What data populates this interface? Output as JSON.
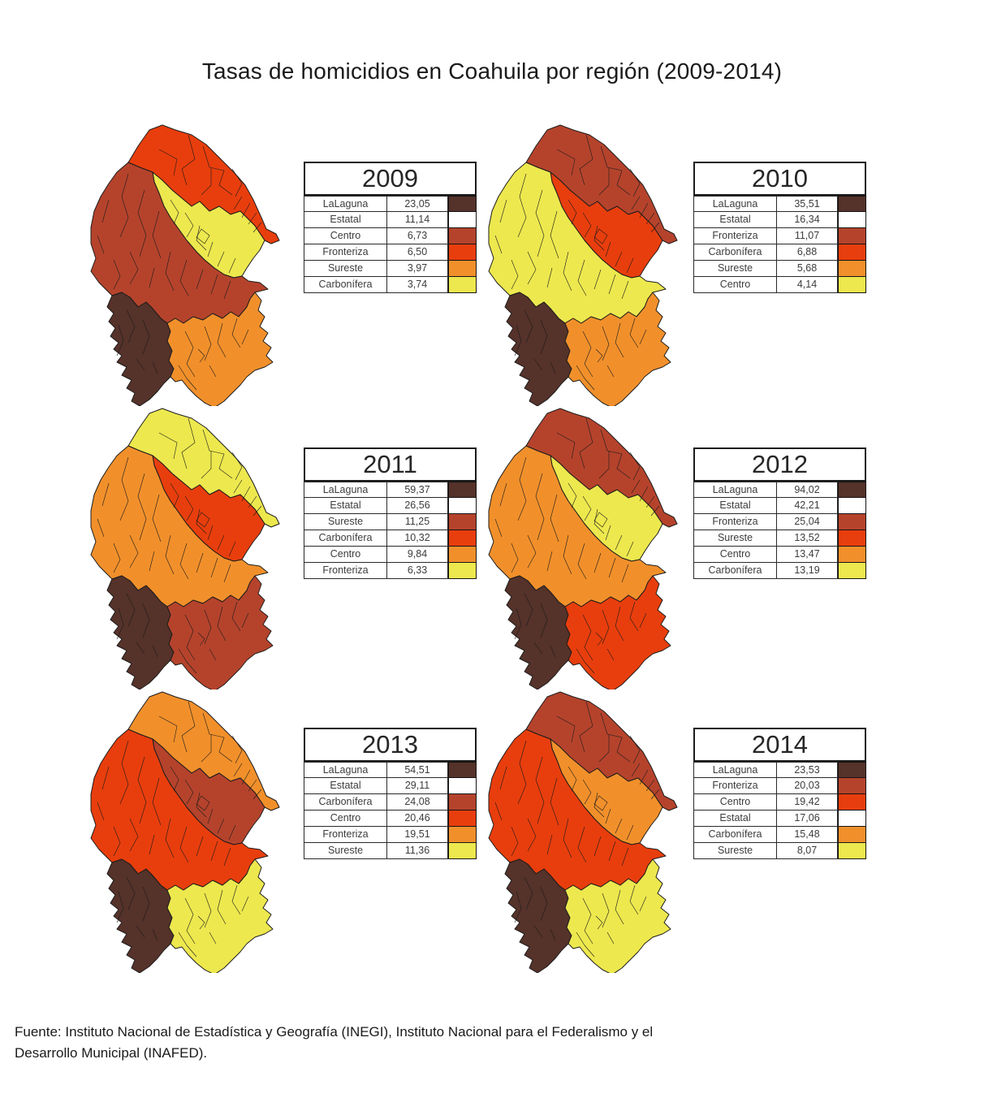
{
  "page": {
    "title": "Tasas de homicidios en Coahuila por región (2009-2014)"
  },
  "source": {
    "line1": "Fuente: Instituto Nacional de Estadística y Geografía (INEGI), Instituto Nacional para el Federalismo y el",
    "line2": "Desarrollo Municipal (INAFED)."
  },
  "palette": {
    "rank_colors": [
      "#55322A",
      "#FFFFFF",
      "#B5432C",
      "#E83E0D",
      "#F1902B",
      "#EDE84E"
    ],
    "border": "#1C1C1C"
  },
  "chart_data": {
    "type": "heatmap",
    "subtype": "choropleth-small-multiples",
    "title": "Tasas de homicidios en Coahuila por región (2009-2014)",
    "x": [
      2009,
      2010,
      2011,
      2012,
      2013,
      2014
    ],
    "series": [
      {
        "name": "LaLaguna",
        "values": [
          23.05,
          35.51,
          59.37,
          94.02,
          54.51,
          23.53
        ]
      },
      {
        "name": "Estatal",
        "values": [
          11.14,
          16.34,
          26.56,
          42.21,
          29.11,
          17.06
        ]
      },
      {
        "name": "Fronteriza",
        "values": [
          6.5,
          11.07,
          6.33,
          25.04,
          19.51,
          20.03
        ]
      },
      {
        "name": "Carbonífera",
        "values": [
          3.74,
          6.88,
          10.32,
          13.19,
          24.08,
          15.48
        ]
      },
      {
        "name": "Centro",
        "values": [
          6.73,
          4.14,
          9.84,
          13.47,
          20.46,
          19.42
        ]
      },
      {
        "name": "Sureste",
        "values": [
          3.97,
          5.68,
          11.25,
          13.52,
          11.36,
          8.07
        ]
      }
    ],
    "years": [
      {
        "label": "2009",
        "rows": [
          {
            "region": "LaLaguna",
            "value": "23,05",
            "color": "#55322A"
          },
          {
            "region": "Estatal",
            "value": "11,14",
            "color": "#FFFFFF"
          },
          {
            "region": "Centro",
            "value": "6,73",
            "color": "#B5432C"
          },
          {
            "region": "Fronteriza",
            "value": "6,50",
            "color": "#E83E0D"
          },
          {
            "region": "Sureste",
            "value": "3,97",
            "color": "#F1902B"
          },
          {
            "region": "Carbonífera",
            "value": "3,74",
            "color": "#EDE84E"
          }
        ],
        "region_colors": {
          "laguna": "#55322A",
          "centro": "#B5432C",
          "fronteriza": "#E83E0D",
          "sureste": "#F1902B",
          "carbonifera": "#EDE84E"
        }
      },
      {
        "label": "2010",
        "rows": [
          {
            "region": "LaLaguna",
            "value": "35,51",
            "color": "#55322A"
          },
          {
            "region": "Estatal",
            "value": "16,34",
            "color": "#FFFFFF"
          },
          {
            "region": "Fronteriza",
            "value": "11,07",
            "color": "#B5432C"
          },
          {
            "region": "Carbonífera",
            "value": "6,88",
            "color": "#E83E0D"
          },
          {
            "region": "Sureste",
            "value": "5,68",
            "color": "#F1902B"
          },
          {
            "region": "Centro",
            "value": "4,14",
            "color": "#EDE84E"
          }
        ],
        "region_colors": {
          "laguna": "#55322A",
          "fronteriza": "#B5432C",
          "carbonifera": "#E83E0D",
          "sureste": "#F1902B",
          "centro": "#EDE84E"
        }
      },
      {
        "label": "2011",
        "rows": [
          {
            "region": "LaLaguna",
            "value": "59,37",
            "color": "#55322A"
          },
          {
            "region": "Estatal",
            "value": "26,56",
            "color": "#FFFFFF"
          },
          {
            "region": "Sureste",
            "value": "11,25",
            "color": "#B5432C"
          },
          {
            "region": "Carbonífera",
            "value": "10,32",
            "color": "#E83E0D"
          },
          {
            "region": "Centro",
            "value": "9,84",
            "color": "#F1902B"
          },
          {
            "region": "Fronteriza",
            "value": "6,33",
            "color": "#EDE84E"
          }
        ],
        "region_colors": {
          "laguna": "#55322A",
          "sureste": "#B5432C",
          "carbonifera": "#E83E0D",
          "centro": "#F1902B",
          "fronteriza": "#EDE84E"
        }
      },
      {
        "label": "2012",
        "rows": [
          {
            "region": "LaLaguna",
            "value": "94,02",
            "color": "#55322A"
          },
          {
            "region": "Estatal",
            "value": "42,21",
            "color": "#FFFFFF"
          },
          {
            "region": "Fronteriza",
            "value": "25,04",
            "color": "#B5432C"
          },
          {
            "region": "Sureste",
            "value": "13,52",
            "color": "#E83E0D"
          },
          {
            "region": "Centro",
            "value": "13,47",
            "color": "#F1902B"
          },
          {
            "region": "Carbonífera",
            "value": "13,19",
            "color": "#EDE84E"
          }
        ],
        "region_colors": {
          "laguna": "#55322A",
          "fronteriza": "#B5432C",
          "sureste": "#E83E0D",
          "centro": "#F1902B",
          "carbonifera": "#EDE84E"
        }
      },
      {
        "label": "2013",
        "rows": [
          {
            "region": "LaLaguna",
            "value": "54,51",
            "color": "#55322A"
          },
          {
            "region": "Estatal",
            "value": "29,11",
            "color": "#FFFFFF"
          },
          {
            "region": "Carbonífera",
            "value": "24,08",
            "color": "#B5432C"
          },
          {
            "region": "Centro",
            "value": "20,46",
            "color": "#E83E0D"
          },
          {
            "region": "Fronteriza",
            "value": "19,51",
            "color": "#F1902B"
          },
          {
            "region": "Sureste",
            "value": "11,36",
            "color": "#EDE84E"
          }
        ],
        "region_colors": {
          "laguna": "#55322A",
          "carbonifera": "#B5432C",
          "centro": "#E83E0D",
          "fronteriza": "#F1902B",
          "sureste": "#EDE84E"
        }
      },
      {
        "label": "2014",
        "rows": [
          {
            "region": "LaLaguna",
            "value": "23,53",
            "color": "#55322A"
          },
          {
            "region": "Fronteriza",
            "value": "20,03",
            "color": "#B5432C"
          },
          {
            "region": "Centro",
            "value": "19,42",
            "color": "#E83E0D"
          },
          {
            "region": "Estatal",
            "value": "17,06",
            "color": "#FFFFFF"
          },
          {
            "region": "Carbonífera",
            "value": "15,48",
            "color": "#F1902B"
          },
          {
            "region": "Sureste",
            "value": "8,07",
            "color": "#EDE84E"
          }
        ],
        "region_colors": {
          "laguna": "#55322A",
          "fronteriza": "#B5432C",
          "centro": "#E83E0D",
          "carbonifera": "#F1902B",
          "sureste": "#EDE84E"
        }
      }
    ]
  }
}
